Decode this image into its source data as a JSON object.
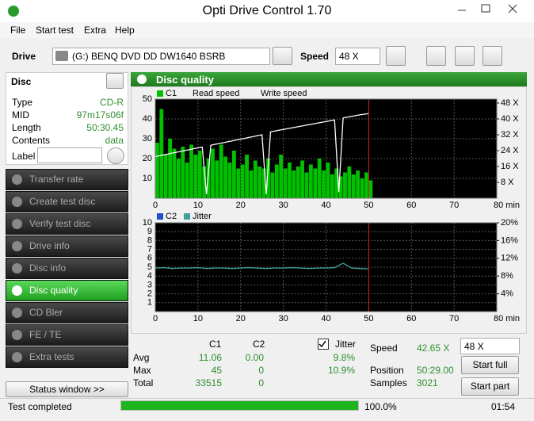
{
  "window": {
    "title": "Opti Drive Control 1.70"
  },
  "menu": [
    "File",
    "Start test",
    "Extra",
    "Help"
  ],
  "toolbar": {
    "drive_label": "Drive",
    "drive": "(G:)  BENQ DVD DD DW1640 BSRB",
    "speed_label": "Speed",
    "speed": "48 X"
  },
  "disc": {
    "title": "Disc",
    "rows": [
      {
        "label": "Type",
        "value": "CD-R"
      },
      {
        "label": "MID",
        "value": "97m17s06f"
      },
      {
        "label": "Length",
        "value": "50:30.45"
      },
      {
        "label": "Contents",
        "value": "data"
      }
    ],
    "label": "Label"
  },
  "sidebar": {
    "items": [
      "Transfer rate",
      "Create test disc",
      "Verify test disc",
      "Drive info",
      "Disc info",
      "Disc quality",
      "CD Bler",
      "FE / TE",
      "Extra tests"
    ],
    "active": 5,
    "status_button": "Status window >>"
  },
  "panel": {
    "title": "Disc quality"
  },
  "chart_data": [
    {
      "type": "bar",
      "x": [
        0,
        1,
        2,
        3,
        4,
        5,
        6,
        7,
        8,
        9,
        10,
        11,
        12,
        13,
        14,
        15,
        16,
        17,
        18,
        19,
        20,
        21,
        22,
        23,
        24,
        25,
        26,
        27,
        28,
        29,
        30,
        31,
        32,
        33,
        34,
        35,
        36,
        37,
        38,
        39,
        40,
        41,
        42,
        43,
        44,
        45,
        46,
        47,
        48,
        49,
        50
      ],
      "series": [
        {
          "name": "C1",
          "color": "#00c000",
          "values": [
            28,
            45,
            22,
            30,
            25,
            20,
            26,
            18,
            27,
            22,
            24,
            16,
            20,
            25,
            19,
            27,
            21,
            18,
            24,
            15,
            17,
            22,
            14,
            19,
            16,
            15,
            20,
            13,
            17,
            22,
            15,
            18,
            14,
            16,
            19,
            13,
            17,
            15,
            20,
            14,
            18,
            12,
            15,
            11,
            13,
            16,
            12,
            14,
            10,
            13,
            9
          ]
        },
        {
          "name": "Read speed",
          "type": "line",
          "axis": "y2",
          "color": "#ffffff",
          "values": [
            21,
            21.4,
            21.9,
            22.3,
            22.8,
            23.2,
            23.6,
            24.1,
            24.5,
            25,
            25.4,
            25.8,
            2,
            26.7,
            27.2,
            27.6,
            28,
            28.5,
            28.9,
            29.4,
            29.8,
            30.2,
            30.7,
            31.1,
            31.6,
            32,
            2,
            33.5,
            33.9,
            34.3,
            34.7,
            35.1,
            35.5,
            35.9,
            36.3,
            36.7,
            37.1,
            37.5,
            37.9,
            38.3,
            38.7,
            39.1,
            39.5,
            3,
            40.5,
            40.9,
            41.3,
            41.7,
            42.1,
            42.4,
            42.7
          ]
        },
        {
          "name": "Write speed",
          "type": "line",
          "axis": "y2",
          "values": [
            null,
            null,
            null,
            null,
            null,
            null,
            null,
            null,
            null,
            null,
            null,
            null,
            null,
            null,
            null,
            null,
            null,
            null,
            null,
            null,
            null,
            null,
            null,
            null,
            null,
            null,
            null,
            null,
            null,
            null,
            null,
            null,
            null,
            null,
            null,
            null,
            null,
            null,
            null,
            null,
            null,
            null,
            null,
            null,
            null,
            null,
            null,
            null,
            null,
            null,
            null
          ]
        }
      ],
      "xlim": [
        0,
        80
      ],
      "xticks": [
        0,
        10,
        20,
        30,
        40,
        50,
        60,
        70,
        {
          "value": 80,
          "label": "80 min"
        }
      ],
      "ylim": [
        0,
        50
      ],
      "yticks": [
        10,
        20,
        30,
        40,
        50
      ],
      "y2lim": [
        0,
        50
      ],
      "y2ticks": [
        {
          "value": 8,
          "label": "8 X"
        },
        {
          "value": 16,
          "label": "16 X"
        },
        {
          "value": 24,
          "label": "24 X"
        },
        {
          "value": 32,
          "label": "32 X"
        },
        {
          "value": 40,
          "label": "40 X"
        },
        {
          "value": 48,
          "label": "48 X"
        }
      ],
      "grid": true
    },
    {
      "type": "bar",
      "x": [
        0,
        2,
        4,
        6,
        8,
        10,
        12,
        14,
        16,
        18,
        20,
        22,
        24,
        26,
        28,
        30,
        32,
        34,
        36,
        38,
        40,
        42,
        44,
        46,
        48,
        50
      ],
      "series": [
        {
          "name": "C2",
          "color": "#2050d0",
          "values": [
            0,
            0,
            0,
            0,
            0,
            0,
            0,
            0,
            0,
            0,
            0,
            0,
            0,
            0,
            0,
            0,
            0,
            0,
            0,
            0,
            0,
            0,
            0,
            0,
            0,
            0
          ]
        },
        {
          "name": "Jitter",
          "type": "line",
          "axis": "y2",
          "color": "#3fa0a0",
          "values": [
            9.8,
            9.9,
            9.7,
            9.8,
            9.8,
            9.9,
            9.7,
            9.8,
            9.8,
            9.7,
            9.8,
            9.9,
            9.8,
            9.7,
            9.8,
            9.8,
            9.9,
            9.8,
            9.7,
            9.8,
            9.8,
            9.9,
            10.9,
            9.8,
            9.7,
            9.6
          ]
        }
      ],
      "xlim": [
        0,
        80
      ],
      "xticks": [
        0,
        10,
        20,
        30,
        40,
        50,
        60,
        70,
        {
          "value": 80,
          "label": "80 min"
        }
      ],
      "ylim": [
        0,
        10
      ],
      "yticks": [
        1,
        2,
        3,
        4,
        5,
        6,
        7,
        8,
        9,
        10
      ],
      "y2lim": [
        0,
        20
      ],
      "y2ticks": [
        {
          "value": 4,
          "label": "4%"
        },
        {
          "value": 8,
          "label": "8%"
        },
        {
          "value": 12,
          "label": "12%"
        },
        {
          "value": 16,
          "label": "16%"
        },
        {
          "value": 20,
          "label": "20%"
        }
      ],
      "grid": true
    }
  ],
  "stats": {
    "headers": [
      "C1",
      "C2"
    ],
    "jitter_label": "Jitter",
    "jitter_checked": true,
    "rows": [
      {
        "label": "Avg",
        "c1": "11.06",
        "c2": "0.00",
        "jitter": "9.8%"
      },
      {
        "label": "Max",
        "c1": "45",
        "c2": "0",
        "jitter": "10.9%"
      },
      {
        "label": "Total",
        "c1": "33515",
        "c2": "0"
      }
    ]
  },
  "controls": {
    "speed_label": "Speed",
    "speed_value": "42.65 X",
    "speed_select": "48 X",
    "position_label": "Position",
    "position": "50:29.00",
    "samples_label": "Samples",
    "samples": "3021",
    "start_full": "Start full",
    "start_part": "Start part"
  },
  "status": {
    "text": "Test completed",
    "progress": 100,
    "progress_label": "100.0%",
    "time": "01:54"
  }
}
